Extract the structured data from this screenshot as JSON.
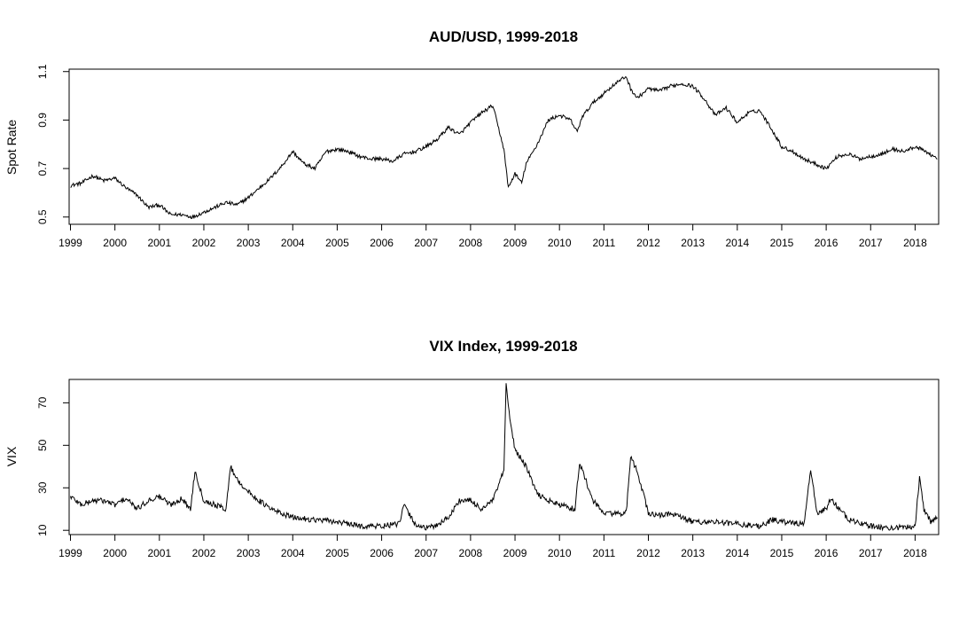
{
  "chart_data": [
    {
      "type": "line",
      "title": "AUD/USD, 1999-2018",
      "xlabel": "",
      "ylabel": "Spot Rate",
      "x_ticks": [
        "1999",
        "2000",
        "2001",
        "2002",
        "2003",
        "2004",
        "2005",
        "2006",
        "2007",
        "2008",
        "2009",
        "2010",
        "2011",
        "2012",
        "2013",
        "2014",
        "2015",
        "2016",
        "2017",
        "2018"
      ],
      "y_ticks": [
        "0.5",
        "0.7",
        "0.9",
        "1.1"
      ],
      "xlim": [
        1998.97,
        2018.53
      ],
      "ylim": [
        0.47,
        1.11
      ],
      "grid": false,
      "line_color": "#000000",
      "series": [
        {
          "x": [
            1999.0,
            1999.25,
            1999.5,
            1999.75,
            2000.0,
            2000.25,
            2000.5,
            2000.75,
            2001.0,
            2001.25,
            2001.5,
            2001.75,
            2002.0,
            2002.25,
            2002.5,
            2002.75,
            2003.0,
            2003.25,
            2003.5,
            2003.75,
            2004.0,
            2004.25,
            2004.5,
            2004.75,
            2005.0,
            2005.25,
            2005.5,
            2005.75,
            2006.0,
            2006.25,
            2006.5,
            2006.75,
            2007.0,
            2007.25,
            2007.5,
            2007.75,
            2008.0,
            2008.25,
            2008.5,
            2008.75,
            2008.85,
            2009.0,
            2009.15,
            2009.25,
            2009.5,
            2009.75,
            2010.0,
            2010.25,
            2010.4,
            2010.5,
            2010.75,
            2011.0,
            2011.25,
            2011.5,
            2011.6,
            2011.75,
            2012.0,
            2012.25,
            2012.5,
            2012.75,
            2013.0,
            2013.25,
            2013.5,
            2013.75,
            2014.0,
            2014.25,
            2014.5,
            2014.75,
            2015.0,
            2015.25,
            2015.5,
            2015.75,
            2016.0,
            2016.25,
            2016.5,
            2016.75,
            2017.0,
            2017.25,
            2017.5,
            2017.75,
            2018.0,
            2018.25,
            2018.5
          ],
          "y": [
            0.63,
            0.64,
            0.67,
            0.65,
            0.66,
            0.62,
            0.59,
            0.54,
            0.55,
            0.51,
            0.51,
            0.5,
            0.52,
            0.54,
            0.56,
            0.55,
            0.58,
            0.62,
            0.66,
            0.71,
            0.77,
            0.72,
            0.7,
            0.77,
            0.78,
            0.77,
            0.75,
            0.74,
            0.74,
            0.73,
            0.76,
            0.77,
            0.79,
            0.82,
            0.87,
            0.84,
            0.89,
            0.93,
            0.96,
            0.78,
            0.62,
            0.68,
            0.64,
            0.72,
            0.8,
            0.9,
            0.92,
            0.9,
            0.85,
            0.91,
            0.97,
            1.01,
            1.05,
            1.08,
            1.03,
            0.99,
            1.03,
            1.02,
            1.04,
            1.05,
            1.04,
            0.99,
            0.92,
            0.95,
            0.89,
            0.93,
            0.94,
            0.87,
            0.79,
            0.77,
            0.74,
            0.72,
            0.7,
            0.75,
            0.76,
            0.74,
            0.75,
            0.76,
            0.78,
            0.77,
            0.79,
            0.77,
            0.74
          ]
        }
      ]
    },
    {
      "type": "line",
      "title": "VIX Index, 1999-2018",
      "xlabel": "",
      "ylabel": "VIX",
      "x_ticks": [
        "1999",
        "2000",
        "2001",
        "2002",
        "2003",
        "2004",
        "2005",
        "2006",
        "2007",
        "2008",
        "2009",
        "2010",
        "2011",
        "2012",
        "2013",
        "2014",
        "2015",
        "2016",
        "2017",
        "2018"
      ],
      "y_ticks": [
        "10",
        "30",
        "50",
        "70"
      ],
      "xlim": [
        1998.97,
        2018.53
      ],
      "ylim": [
        8,
        81
      ],
      "grid": false,
      "line_color": "#000000",
      "series": [
        {
          "x": [
            1999.0,
            1999.25,
            1999.5,
            1999.75,
            2000.0,
            2000.25,
            2000.5,
            2000.75,
            2001.0,
            2001.25,
            2001.5,
            2001.7,
            2001.8,
            2002.0,
            2002.25,
            2002.5,
            2002.6,
            2002.75,
            2003.0,
            2003.25,
            2003.5,
            2003.75,
            2004.0,
            2004.5,
            2005.0,
            2005.5,
            2006.0,
            2006.4,
            2006.5,
            2006.75,
            2007.0,
            2007.2,
            2007.5,
            2007.75,
            2008.0,
            2008.25,
            2008.5,
            2008.75,
            2008.8,
            2008.9,
            2009.0,
            2009.25,
            2009.5,
            2009.75,
            2010.0,
            2010.35,
            2010.45,
            2010.75,
            2011.0,
            2011.5,
            2011.6,
            2011.75,
            2012.0,
            2012.25,
            2012.5,
            2012.75,
            2013.0,
            2013.5,
            2014.0,
            2014.5,
            2014.8,
            2015.0,
            2015.5,
            2015.65,
            2015.8,
            2016.0,
            2016.1,
            2016.5,
            2017.0,
            2017.5,
            2018.0,
            2018.1,
            2018.2,
            2018.35,
            2018.5
          ],
          "y": [
            26,
            22,
            24,
            24,
            22,
            25,
            20,
            24,
            26,
            22,
            25,
            20,
            38,
            24,
            22,
            20,
            40,
            34,
            28,
            24,
            20,
            18,
            16,
            15,
            14,
            12,
            12,
            13,
            22,
            13,
            11,
            12,
            16,
            24,
            24,
            20,
            24,
            38,
            78,
            60,
            48,
            40,
            27,
            24,
            22,
            20,
            42,
            24,
            18,
            18,
            44,
            38,
            18,
            17,
            18,
            16,
            14,
            14,
            13,
            12,
            15,
            14,
            13,
            38,
            18,
            20,
            25,
            15,
            12,
            11,
            12,
            35,
            20,
            14,
            16
          ]
        }
      ]
    }
  ]
}
